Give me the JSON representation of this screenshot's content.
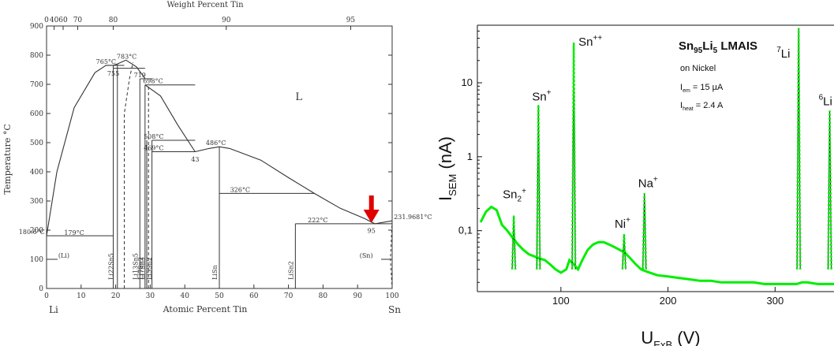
{
  "colors": {
    "axis": "#333333",
    "arrow": "#e00000",
    "trace": "#00ee00",
    "trace_dark": "#1a1a1a"
  },
  "chart_data": [
    {
      "type": "line",
      "title": "",
      "xlabel_bottom": "Atomic Percent Tin",
      "xlabel_top": "Weight Percent Tin",
      "ylabel": "Temperature °C",
      "xlim": [
        0,
        100
      ],
      "ylim": [
        0,
        900
      ],
      "x_ticks_bottom": [
        0,
        10,
        20,
        30,
        40,
        50,
        60,
        70,
        80,
        90,
        100
      ],
      "x_tick_labels_bottom": [
        "0",
        "10",
        "20",
        "30",
        "40",
        "50",
        "60",
        "70",
        "80",
        "90",
        "100"
      ],
      "x_end_labels": {
        "left": "Li",
        "right": "Sn"
      },
      "top_ticks_at_atomic": [
        0,
        2.2,
        4.8,
        9.0,
        19.3,
        52.0,
        88.0
      ],
      "top_tick_labels": [
        "0",
        "40",
        "60",
        "70",
        "80",
        "90",
        "95"
      ],
      "y_ticks": [
        0,
        100,
        200,
        300,
        400,
        500,
        600,
        700,
        800,
        900
      ],
      "series": [
        {
          "values_x": [
            0,
            3,
            8,
            14,
            17.2,
            19.3
          ],
          "values_y": [
            180.6,
            400,
            620,
            740,
            765,
            765
          ]
        },
        {
          "values_x": [
            23,
            26,
            28.5
          ],
          "values_y": [
            783,
            760,
            720
          ]
        },
        {
          "values_x": [
            28.5,
            33,
            38,
            43
          ],
          "values_y": [
            698,
            660,
            560,
            469
          ]
        },
        {
          "values_x": [
            43,
            47,
            50,
            53
          ],
          "values_y": [
            469,
            480,
            486,
            480
          ]
        },
        {
          "values_x": [
            53,
            62,
            70,
            77.5
          ],
          "values_y": [
            480,
            440,
            380,
            326
          ]
        },
        {
          "values_x": [
            77.5,
            85,
            92,
            95,
            100
          ],
          "values_y": [
            326,
            275,
            240,
            222,
            231.9681
          ]
        }
      ],
      "annotations": [
        {
          "text": "765°C",
          "x": 17.2,
          "y": 765
        },
        {
          "text": "783°C",
          "x": 23.2,
          "y": 783
        },
        {
          "text": "755",
          "x": 19.3,
          "y": 725
        },
        {
          "text": "719",
          "x": 27,
          "y": 719
        },
        {
          "text": "698°C",
          "x": 30.8,
          "y": 698
        },
        {
          "text": "L",
          "x": 73,
          "y": 640
        },
        {
          "text": "508°C",
          "x": 31,
          "y": 508
        },
        {
          "text": "469°C",
          "x": 31,
          "y": 469
        },
        {
          "text": "486°C",
          "x": 49,
          "y": 486
        },
        {
          "text": "43",
          "x": 43,
          "y": 430
        },
        {
          "text": "326°C",
          "x": 56,
          "y": 326
        },
        {
          "text": "222°C",
          "x": 78.5,
          "y": 222
        },
        {
          "text": "95",
          "x": 94,
          "y": 185
        },
        {
          "text": "231.9681°C",
          "x": 100.5,
          "y": 231.9681
        },
        {
          "text": "180.6°C",
          "x": -0.5,
          "y": 180.6
        },
        {
          "text": "179°C",
          "x": 8,
          "y": 179
        },
        {
          "text": "(Li)",
          "x": 5,
          "y": 100
        },
        {
          "text": "(Sn)",
          "x": 92.5,
          "y": 100
        }
      ],
      "phases": [
        {
          "text": "Li22Sn5",
          "x": 20
        },
        {
          "text": "Li7Sn2",
          "x": 28.5
        },
        {
          "text": "Li5Sn2",
          "x": 31
        },
        {
          "text": "Li13Sn5",
          "x": 27
        },
        {
          "text": "Li7Sn3",
          "x": 29
        },
        {
          "text": "LiSn",
          "x": 50
        },
        {
          "text": "LiSn2",
          "x": 72
        }
      ],
      "marker_arrow_x": 94
    },
    {
      "type": "line",
      "title": "",
      "xlabel": "UExB (V)",
      "ylabel": "ISEM (nA)",
      "xlim": [
        22,
        355
      ],
      "ylim": [
        0.015,
        60
      ],
      "y_scale": "log",
      "x_ticks": [
        100,
        200,
        300
      ],
      "x_tick_labels": [
        "100",
        "200",
        "300"
      ],
      "y_ticks": [
        0.1,
        1,
        10
      ],
      "y_tick_labels": [
        "0,1",
        "1",
        "10"
      ],
      "legend_text": {
        "title": "Sn95Li5 LMAIS",
        "line1": "on  Nickel",
        "line2": "Iem = 15 µA",
        "line3": "Iheat = 2.4 A"
      },
      "peaks": [
        {
          "label": "Sn2+",
          "x": 56,
          "y": 0.16
        },
        {
          "label": "Sn+",
          "x": 79,
          "y": 5.0
        },
        {
          "label": "Sn++",
          "x": 112,
          "y": 35
        },
        {
          "label": "Ni+",
          "x": 159,
          "y": 0.09
        },
        {
          "label": "Na+",
          "x": 178,
          "y": 0.32
        },
        {
          "label": "7Li",
          "x": 322,
          "y": 55
        },
        {
          "label": "6Li",
          "x": 351,
          "y": 4.2
        }
      ],
      "x": [
        25,
        30,
        35,
        40,
        45,
        50,
        55,
        60,
        65,
        70,
        75,
        80,
        85,
        90,
        95,
        100,
        105,
        108,
        112,
        116,
        120,
        125,
        130,
        135,
        140,
        145,
        150,
        155,
        160,
        165,
        170,
        175,
        180,
        190,
        200,
        210,
        220,
        230,
        240,
        250,
        260,
        270,
        280,
        290,
        300,
        310,
        320,
        325,
        330,
        340,
        350,
        355
      ],
      "values": [
        0.13,
        0.18,
        0.21,
        0.19,
        0.12,
        0.1,
        0.08,
        0.065,
        0.055,
        0.048,
        0.045,
        0.042,
        0.04,
        0.035,
        0.03,
        0.027,
        0.03,
        0.04,
        0.035,
        0.03,
        0.04,
        0.055,
        0.065,
        0.07,
        0.07,
        0.065,
        0.06,
        0.055,
        0.05,
        0.042,
        0.035,
        0.03,
        0.028,
        0.025,
        0.024,
        0.023,
        0.022,
        0.021,
        0.021,
        0.02,
        0.02,
        0.02,
        0.02,
        0.019,
        0.019,
        0.019,
        0.019,
        0.02,
        0.02,
        0.019,
        0.019,
        0.019
      ]
    }
  ],
  "text": {
    "left_top_axis_title": "Weight Percent Tin",
    "left_bottom_axis_title": "Atomic Percent Tin",
    "left_y_title": "Temperature °C",
    "left_x_end_left": "Li",
    "left_x_end_right": "Sn"
  }
}
